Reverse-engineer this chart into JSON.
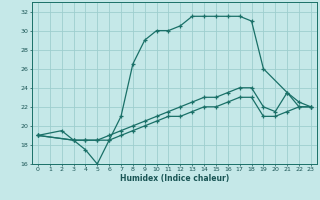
{
  "title": "",
  "xlabel": "Humidex (Indice chaleur)",
  "bg_color": "#c5e8e8",
  "grid_color": "#9ecece",
  "line_color": "#1a7068",
  "xlim": [
    -0.5,
    23.5
  ],
  "ylim": [
    16,
    33
  ],
  "xticks": [
    0,
    1,
    2,
    3,
    4,
    5,
    6,
    7,
    8,
    9,
    10,
    11,
    12,
    13,
    14,
    15,
    16,
    17,
    18,
    19,
    20,
    21,
    22,
    23
  ],
  "yticks": [
    16,
    18,
    20,
    22,
    24,
    26,
    28,
    30,
    32
  ],
  "series": [
    {
      "x": [
        0,
        2,
        3,
        4,
        5,
        6,
        7,
        8,
        9,
        10,
        11,
        12,
        13,
        14,
        15,
        16,
        17,
        18,
        19,
        21,
        22,
        23
      ],
      "y": [
        19,
        19.5,
        18.5,
        17.5,
        16,
        18.5,
        21,
        26.5,
        29,
        30,
        30,
        30.5,
        31.5,
        31.5,
        31.5,
        31.5,
        31.5,
        31,
        26,
        23.5,
        22,
        22
      ]
    },
    {
      "x": [
        0,
        3,
        4,
        5,
        6,
        7,
        8,
        9,
        10,
        11,
        12,
        13,
        14,
        15,
        16,
        17,
        18,
        19,
        20,
        21,
        22,
        23
      ],
      "y": [
        19,
        18.5,
        18.5,
        18.5,
        19,
        19.5,
        20,
        20.5,
        21,
        21.5,
        22,
        22.5,
        23,
        23,
        23.5,
        24,
        24,
        22,
        21.5,
        23.5,
        22.5,
        22
      ]
    },
    {
      "x": [
        0,
        3,
        4,
        5,
        6,
        7,
        8,
        9,
        10,
        11,
        12,
        13,
        14,
        15,
        16,
        17,
        18,
        19,
        20,
        21,
        22,
        23
      ],
      "y": [
        19,
        18.5,
        18.5,
        18.5,
        18.5,
        19,
        19.5,
        20,
        20.5,
        21,
        21,
        21.5,
        22,
        22,
        22.5,
        23,
        23,
        21,
        21,
        21.5,
        22,
        22
      ]
    }
  ]
}
